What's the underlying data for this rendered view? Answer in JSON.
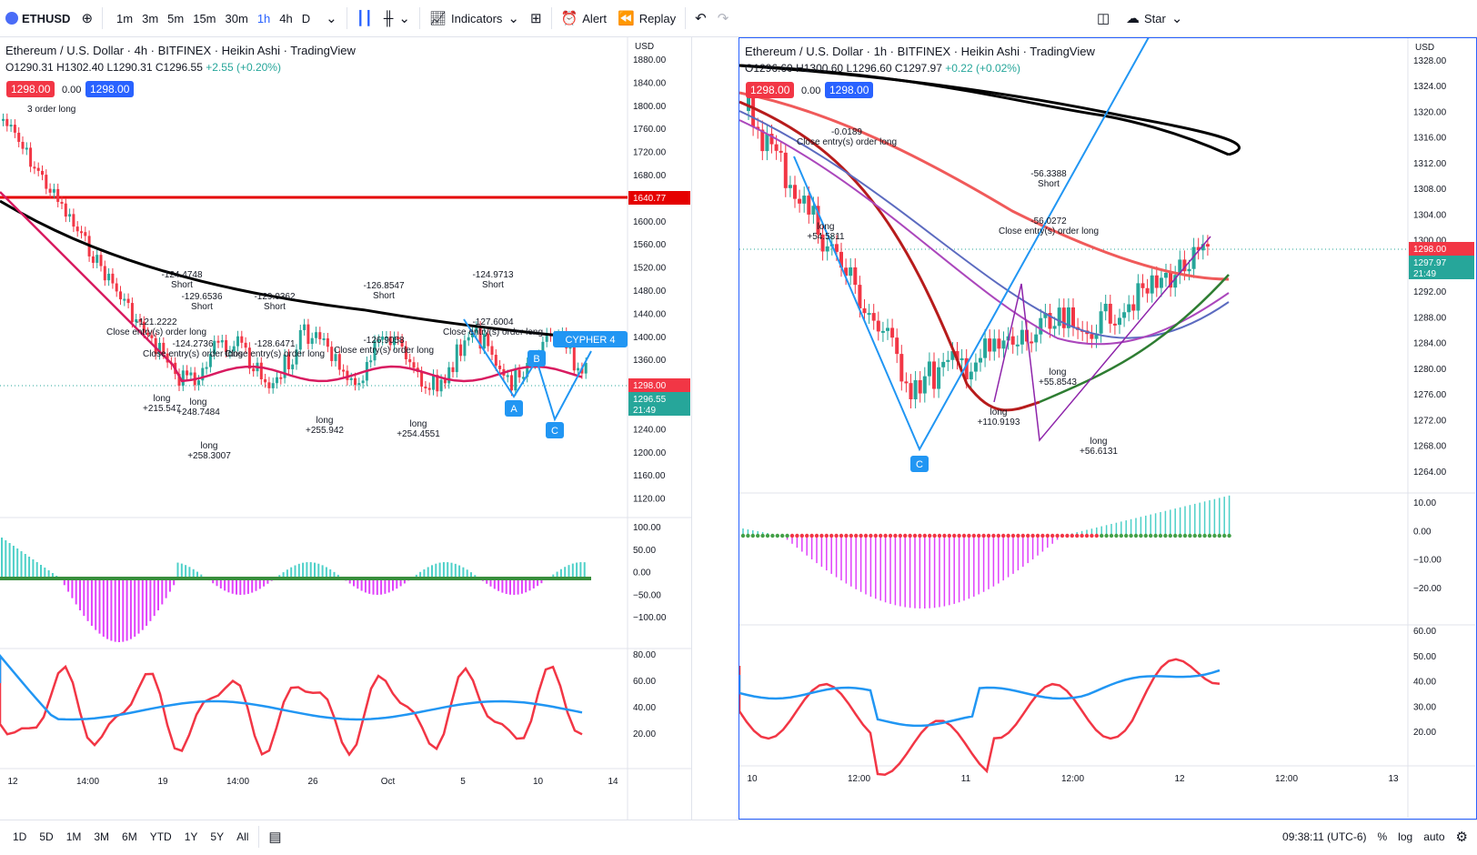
{
  "toolbar": {
    "symbol": "ETHUSD",
    "intervals": [
      "1m",
      "3m",
      "5m",
      "15m",
      "30m",
      "1h",
      "4h",
      "D"
    ],
    "active_interval": "1h",
    "indicators_label": "Indicators",
    "alert_label": "Alert",
    "replay_label": "Replay",
    "star_label": "Star"
  },
  "left_chart": {
    "title": "Ethereum / U.S. Dollar · 4h · BITFINEX · Heikin Ashi · TradingView",
    "ohlc": {
      "o": "O1290.31",
      "h": "H1302.40",
      "l": "L1290.31",
      "c": "C1296.55",
      "chg": "+2.55 (+0.20%)"
    },
    "bid": "1298.00",
    "spread": "0.00",
    "ask": "1298.00",
    "currency": "USD",
    "price_axis": [
      "1880.00",
      "1840.00",
      "1800.00",
      "1760.00",
      "1720.00",
      "1680.00",
      "1640.00",
      "1600.00",
      "1560.00",
      "1520.00",
      "1480.00",
      "1440.00",
      "1400.00",
      "1360.00",
      "1320.00",
      "1280.00",
      "1240.00",
      "1200.00",
      "1160.00",
      "1120.00"
    ],
    "red_line_label": "1640.77",
    "price_label": "1298.00",
    "last_price": "1296.55",
    "countdown": "21:49",
    "macd_axis": [
      "100.00",
      "50.00",
      "0.00",
      "−50.00",
      "−100.00"
    ],
    "rsi_axis": [
      "80.00",
      "60.00",
      "40.00",
      "20.00"
    ],
    "time_axis": [
      "12",
      "14:00",
      "19",
      "14:00",
      "26",
      "Oct",
      "5",
      "10",
      "14"
    ],
    "pattern_label": "CYPHER 4",
    "annotations": [
      {
        "text": "-124.4748",
        "sub": "Short"
      },
      {
        "text": "-129.6536",
        "sub": "Short"
      },
      {
        "text": "-129.0362",
        "sub": "Short"
      },
      {
        "text": "-126.8547",
        "sub": "Short"
      },
      {
        "text": "-124.9713",
        "sub": "Short"
      },
      {
        "text": "-121.2222",
        "sub": "Close entry(s) order long"
      },
      {
        "text": "-124.2736",
        "sub": "Close entry(s) order long"
      },
      {
        "text": "-128.6471",
        "sub": "Close entry(s) order long"
      },
      {
        "text": "-126.9058",
        "sub": "Close entry(s) order long"
      },
      {
        "text": "-127.6004",
        "sub": "Close entry(s) order long"
      },
      {
        "text": "long",
        "sub": "+215.547"
      },
      {
        "text": "long",
        "sub": "+248.7484"
      },
      {
        "text": "long",
        "sub": "+258.3007"
      },
      {
        "text": "long",
        "sub": "+255.942"
      },
      {
        "text": "long",
        "sub": "+254.4551"
      }
    ],
    "order_text": "3 order long"
  },
  "right_chart": {
    "title": "Ethereum / U.S. Dollar · 1h · BITFINEX · Heikin Ashi · TradingView",
    "ohlc": {
      "o": "O1296.60",
      "h": "H1300.60",
      "l": "L1296.60",
      "c": "C1297.97",
      "chg": "+0.22 (+0.02%)"
    },
    "bid": "1298.00",
    "spread": "0.00",
    "ask": "1298.00",
    "currency": "USD",
    "price_axis": [
      "1328.00",
      "1324.00",
      "1320.00",
      "1316.00",
      "1312.00",
      "1308.00",
      "1304.00",
      "1300.00",
      "1296.00",
      "1292.00",
      "1288.00",
      "1284.00",
      "1280.00",
      "1276.00",
      "1272.00",
      "1268.00",
      "1264.00"
    ],
    "price_label": "1298.00",
    "last_price": "1297.97",
    "countdown": "21:49",
    "macd_axis": [
      "10.00",
      "0.00",
      "−10.00",
      "−20.00"
    ],
    "rsi_axis": [
      "60.00",
      "50.00",
      "40.00",
      "30.00",
      "20.00"
    ],
    "time_axis": [
      "10",
      "12:00",
      "11",
      "12:00",
      "12",
      "12:00",
      "13"
    ],
    "annotations": [
      {
        "text": "-0.0189",
        "sub": "Close entry(s) order long"
      },
      {
        "text": "-56.3388",
        "sub": "Short"
      },
      {
        "text": "-56.0272",
        "sub": "Close entry(s) order long"
      },
      {
        "text": "long",
        "sub": "+54.5811"
      },
      {
        "text": "long",
        "sub": "+110.9193"
      },
      {
        "text": "long",
        "sub": "+55.8543"
      },
      {
        "text": "long",
        "sub": "+56.6131"
      }
    ],
    "pattern_point": "C"
  },
  "bottom": {
    "ranges": [
      "1D",
      "5D",
      "1M",
      "3M",
      "6M",
      "YTD",
      "1Y",
      "5Y",
      "All"
    ],
    "clock": "09:38:11 (UTC-6)",
    "percent": "%",
    "log": "log",
    "auto": "auto"
  },
  "colors": {
    "up": "#26a69a",
    "down": "#f23645",
    "blue": "#2962ff",
    "ma_black": "#000000",
    "ma_red": "#e84a5f",
    "ma_purple": "#9c27b0",
    "rsi_red": "#f23645",
    "rsi_blue": "#2196f3"
  }
}
